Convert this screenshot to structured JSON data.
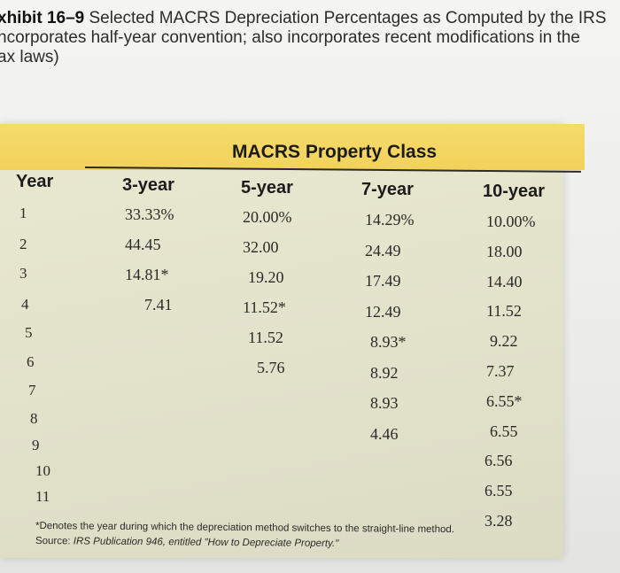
{
  "caption": {
    "exhibit": "xhibit 16–9",
    "line1": "Selected MACRS Depreciation Percentages as Computed by the IRS",
    "line2": "ncorporates half-year convention; also incorporates recent modifications in the",
    "line3": "ax laws)"
  },
  "table": {
    "band_title": "MACRS Property Class",
    "year_header": "Year",
    "classes": [
      "3-year",
      "5-year",
      "7-year",
      "10-year"
    ],
    "years": [
      "1",
      "2",
      "3",
      "4",
      "5",
      "6",
      "7",
      "8",
      "9",
      "10",
      "11"
    ],
    "columns": [
      {
        "class": "3-year",
        "values": [
          "33.33%",
          "44.45",
          "14.81*",
          "7.41"
        ]
      },
      {
        "class": "5-year",
        "values": [
          "20.00%",
          "32.00",
          "19.20",
          "11.52*",
          "11.52",
          "5.76"
        ]
      },
      {
        "class": "7-year",
        "values": [
          "14.29%",
          "24.49",
          "17.49",
          "12.49",
          "8.93*",
          "8.92",
          "8.93",
          "4.46"
        ]
      },
      {
        "class": "10-year",
        "values": [
          "10.00%",
          "18.00",
          "14.40",
          "11.52",
          "9.22",
          "7.37",
          "6.55*",
          "6.55",
          "6.56",
          "6.55",
          "3.28"
        ]
      }
    ]
  },
  "footnotes": {
    "asterisk_note": "*Denotes the year during which the depreciation method switches to the straight-line method.",
    "source_prefix": "Source: ",
    "source_text": "IRS Publication 946, entitled \"How to Depreciate Property.\""
  }
}
